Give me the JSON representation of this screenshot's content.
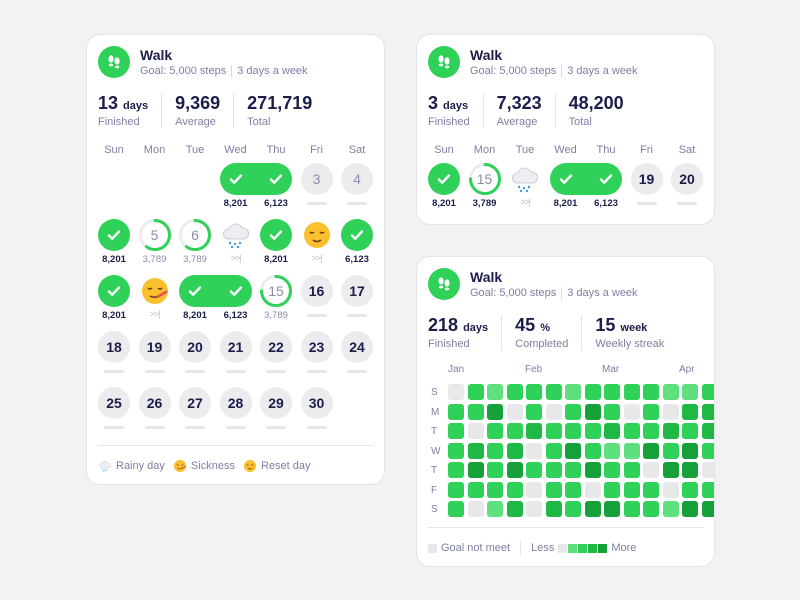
{
  "colors": {
    "accent": "#2fd158",
    "levels": [
      "#e8e8eb",
      "#5fe07f",
      "#2fd158",
      "#1fb845",
      "#16a03a"
    ]
  },
  "weekdays": [
    "Sun",
    "Mon",
    "Tue",
    "Wed",
    "Thu",
    "Fri",
    "Sat"
  ],
  "monthly_card": {
    "title": "Walk",
    "goal": "Goal: 5,000 steps",
    "frequency": "3 days a week",
    "icon": "footprints-icon",
    "stats": [
      {
        "value": "13",
        "unit": "days",
        "label": "Finished"
      },
      {
        "value": "9,369",
        "unit": "",
        "label": "Average"
      },
      {
        "value": "271,719",
        "unit": "",
        "label": "Total"
      }
    ],
    "weeks": [
      [
        null,
        null,
        null,
        {
          "s": "check",
          "v": "8,201",
          "pill": "start"
        },
        {
          "s": "check",
          "v": "6,123",
          "pill": "end"
        },
        {
          "s": "missed",
          "d": "3"
        },
        {
          "s": "missed",
          "d": "4"
        }
      ],
      [
        {
          "s": "check",
          "v": "8,201"
        },
        {
          "s": "prog",
          "d": "5",
          "v": "3,789",
          "p": 0.6
        },
        {
          "s": "prog",
          "d": "6",
          "v": "3,789",
          "p": 0.6
        },
        {
          "s": "rain"
        },
        {
          "s": "check",
          "v": "8,201"
        },
        {
          "s": "reset"
        },
        {
          "s": "check",
          "v": "6,123"
        }
      ],
      [
        {
          "s": "check",
          "v": "8,201"
        },
        {
          "s": "sick"
        },
        {
          "s": "check",
          "v": "8,201",
          "pill": "start"
        },
        {
          "s": "check",
          "v": "6,123",
          "pill": "end"
        },
        {
          "s": "prog",
          "d": "15",
          "v": "3,789",
          "p": 0.75
        },
        {
          "s": "up",
          "d": "16"
        },
        {
          "s": "up",
          "d": "17"
        }
      ],
      [
        {
          "s": "up",
          "d": "18"
        },
        {
          "s": "up",
          "d": "19"
        },
        {
          "s": "up",
          "d": "20"
        },
        {
          "s": "up",
          "d": "21"
        },
        {
          "s": "up",
          "d": "22"
        },
        {
          "s": "up",
          "d": "23"
        },
        {
          "s": "up",
          "d": "24"
        }
      ],
      [
        {
          "s": "up",
          "d": "25"
        },
        {
          "s": "up",
          "d": "26"
        },
        {
          "s": "up",
          "d": "27"
        },
        {
          "s": "up",
          "d": "28"
        },
        {
          "s": "up",
          "d": "29"
        },
        {
          "s": "up",
          "d": "30"
        },
        null
      ]
    ],
    "legend": [
      "Rainy day",
      "Sickness",
      "Reset day"
    ]
  },
  "weekly_card": {
    "title": "Walk",
    "goal": "Goal: 5,000 steps",
    "frequency": "3 days a week",
    "stats": [
      {
        "value": "3",
        "unit": "days",
        "label": "Finished"
      },
      {
        "value": "7,323",
        "unit": "",
        "label": "Average"
      },
      {
        "value": "48,200",
        "unit": "",
        "label": "Total"
      }
    ],
    "week": [
      {
        "s": "check",
        "v": "8,201"
      },
      {
        "s": "prog",
        "d": "15",
        "v": "3,789",
        "p": 0.75,
        "dark": true
      },
      {
        "s": "rain"
      },
      {
        "s": "check",
        "v": "8,201",
        "pill": "start"
      },
      {
        "s": "check",
        "v": "6,123",
        "pill": "end"
      },
      {
        "s": "up",
        "d": "19"
      },
      {
        "s": "up",
        "d": "20"
      }
    ]
  },
  "yearly_card": {
    "title": "Walk",
    "goal": "Goal: 5,000 steps",
    "frequency": "3 days a week",
    "stats": [
      {
        "value": "218",
        "unit": "days",
        "label": "Finished"
      },
      {
        "value": "45",
        "unit": "%",
        "label": "Completed"
      },
      {
        "value": "15",
        "unit": "week",
        "label": "Weekly streak"
      }
    ],
    "months": [
      "Jan",
      "Feb",
      "Mar",
      "Apr"
    ],
    "row_labels": [
      "S",
      "M",
      "T",
      "W",
      "T",
      "F",
      "S"
    ],
    "heatmap": [
      [
        0,
        2,
        1,
        2,
        2,
        2,
        1,
        2,
        2,
        2,
        2,
        1,
        1,
        2
      ],
      [
        2,
        2,
        4,
        0,
        2,
        0,
        2,
        4,
        2,
        0,
        2,
        0,
        3,
        3
      ],
      [
        2,
        0,
        2,
        2,
        3,
        2,
        2,
        2,
        3,
        2,
        2,
        3,
        2,
        3
      ],
      [
        2,
        3,
        2,
        3,
        0,
        2,
        4,
        2,
        1,
        1,
        4,
        2,
        4,
        2
      ],
      [
        2,
        4,
        2,
        4,
        2,
        2,
        2,
        4,
        2,
        2,
        0,
        4,
        4,
        0
      ],
      [
        2,
        2,
        2,
        2,
        0,
        2,
        2,
        0,
        2,
        2,
        2,
        0,
        2,
        2
      ],
      [
        2,
        0,
        1,
        3,
        0,
        3,
        2,
        4,
        4,
        2,
        2,
        1,
        4,
        4
      ]
    ],
    "legend": {
      "not_met": "Goal not meet",
      "less": "Less",
      "more": "More"
    }
  }
}
